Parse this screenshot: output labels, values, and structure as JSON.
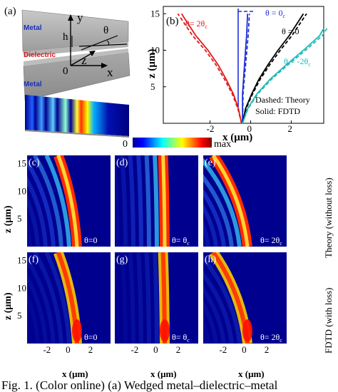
{
  "figure": {
    "panel_a": {
      "label": "(a)",
      "metal_top": "Metal",
      "metal_bottom": "Metal",
      "dielectric": "Dielectric",
      "axis_y": "y",
      "axis_x": "x",
      "axis_z": "z",
      "origin": "0",
      "h": "h",
      "theta": "θ"
    },
    "panel_b": {
      "label": "(b)",
      "xlabel": "x (μm)",
      "ylabel": "z (μm)",
      "xticks": [
        "-2",
        "0",
        "2"
      ],
      "yticks": [
        "5",
        "10",
        "15"
      ],
      "legend_dashed": "Dashed: Theory",
      "legend_solid": "Solid: FDTD",
      "annot_2tc": "θ= 2θ",
      "annot_0c": "θ = 0",
      "annot_0": "θ = 0",
      "annot_m2tc": "θ = -2θ",
      "sub_c": "c",
      "colors": {
        "red": "#e01b1b",
        "blue": "#1f2fd8",
        "black": "#000000",
        "cyan": "#1fb8b8"
      }
    },
    "colorbar": {
      "min": "0",
      "max": "max"
    },
    "maps": {
      "labels": [
        "(c)",
        "(d)",
        "(e)",
        "(f)",
        "(g)",
        "(h)"
      ],
      "theta_labels": [
        "θ=0",
        "θ= θ",
        "θ= 2θ",
        "θ=0",
        "θ= θ",
        "θ= 2θ"
      ],
      "theta_subs": [
        "",
        "c",
        "c",
        "",
        "c",
        "c"
      ],
      "ylabel": "z (μm)",
      "xlabel": "x (μm)",
      "yticks": [
        "5",
        "10",
        "15"
      ],
      "xticks": [
        "-2",
        "0",
        "2"
      ],
      "row_top": "Theory (without loss)",
      "row_bottom": "FDTD (with loss)"
    },
    "caption": "Fig. 1. (Color online) (a) Wedged metal–dielectric–metal"
  },
  "chart_data": {
    "type": "line",
    "title": "",
    "xlabel": "x (μm)",
    "ylabel": "z (μm)",
    "xlim": [
      -4.3,
      3.6
    ],
    "ylim": [
      0,
      16
    ],
    "series": [
      {
        "name": "θ = 2θc",
        "x": [
          -0.45,
          -0.6,
          -0.85,
          -1.2,
          -1.6,
          -2.1,
          -2.7,
          -3.4
        ],
        "y": [
          0,
          2,
          4,
          6,
          8,
          10,
          12,
          15
        ]
      },
      {
        "name": "θ = 0c",
        "x": [
          -0.4,
          -0.4,
          -0.4,
          -0.35,
          -0.3,
          -0.25,
          -0.2,
          -0.15
        ],
        "y": [
          0,
          2,
          4,
          6,
          8,
          10,
          12,
          15
        ]
      },
      {
        "name": "θ = 0",
        "x": [
          -0.4,
          -0.25,
          0.05,
          0.4,
          0.85,
          1.35,
          1.9,
          2.6
        ],
        "y": [
          0,
          2,
          4,
          6,
          8,
          10,
          12,
          15
        ]
      },
      {
        "name": "θ = -2θc",
        "x": [
          -0.4,
          -0.15,
          0.3,
          0.95,
          1.75,
          2.6,
          3.4,
          3.6
        ],
        "y": [
          0,
          2,
          4,
          6,
          8,
          10,
          12,
          13
        ]
      }
    ]
  }
}
